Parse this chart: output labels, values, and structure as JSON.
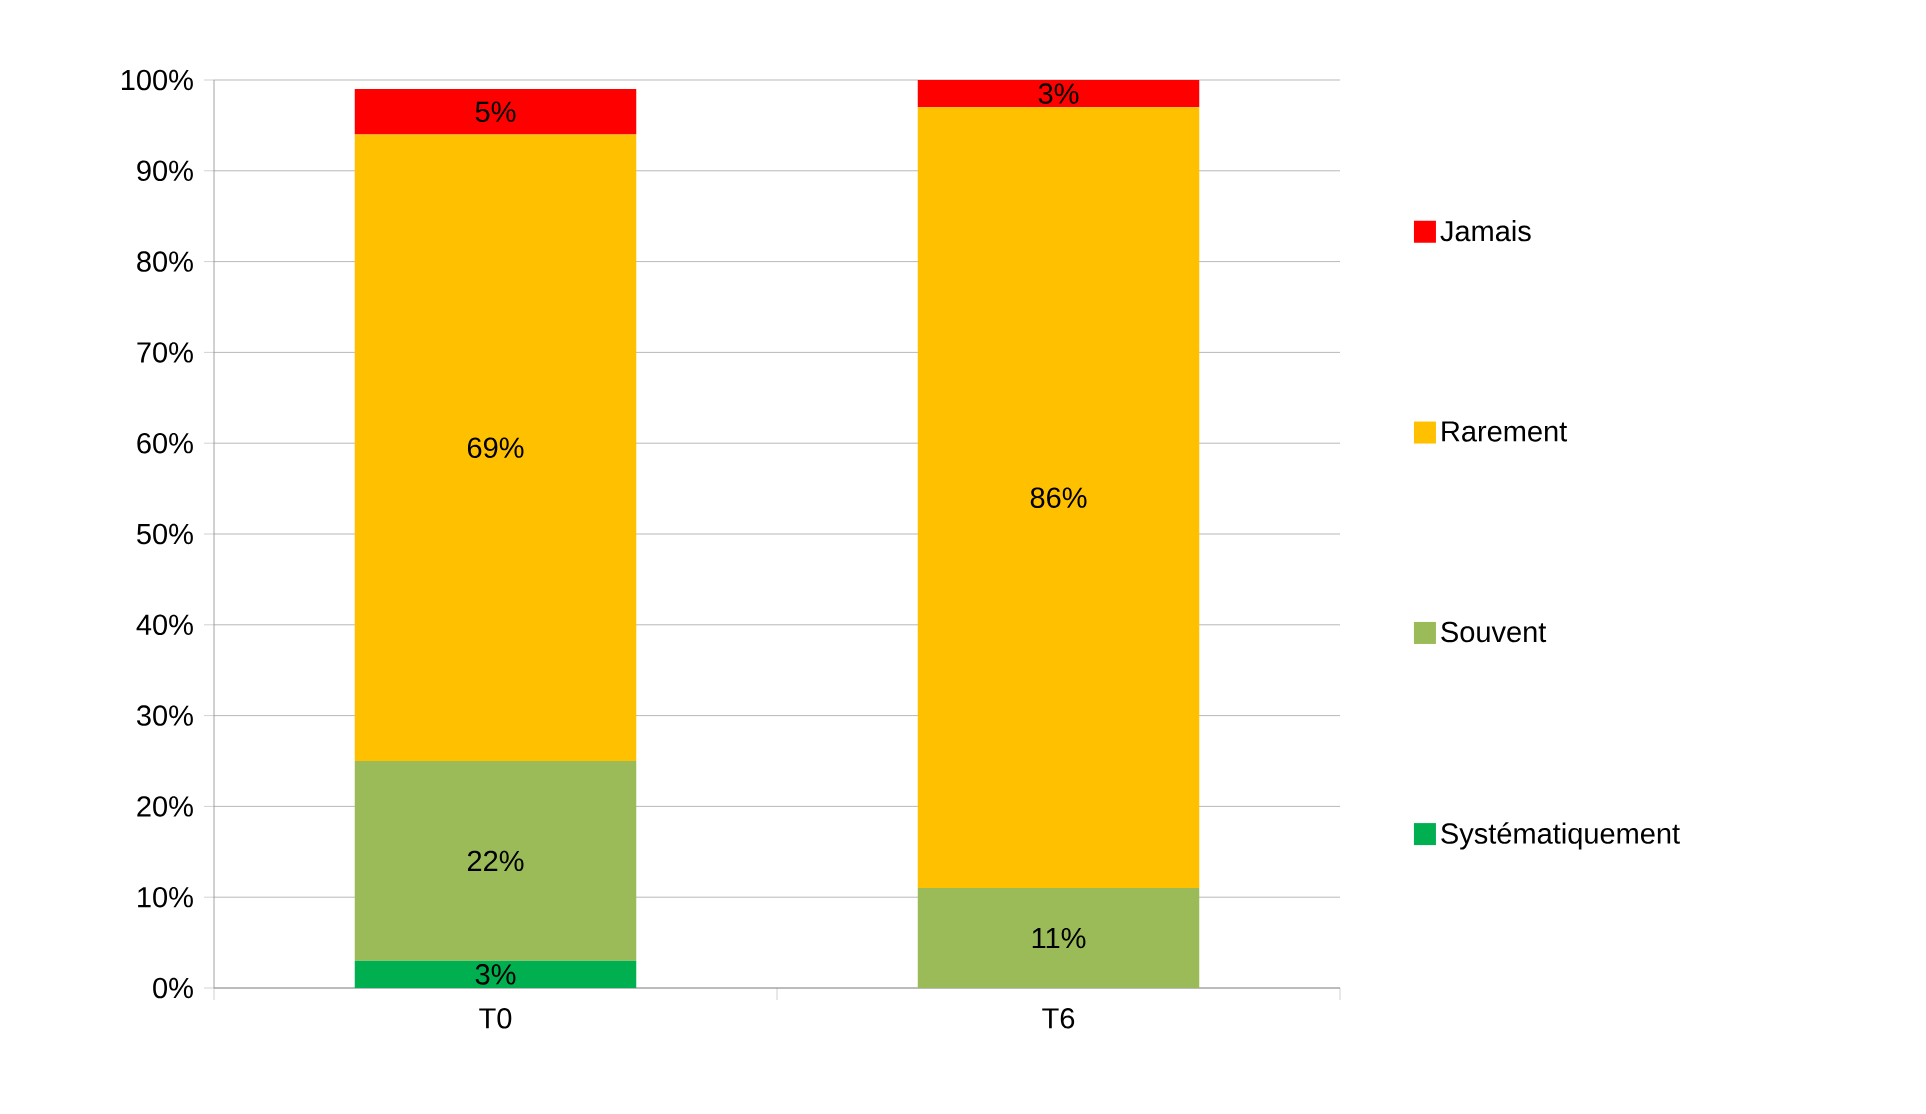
{
  "chart_data": {
    "type": "bar",
    "stacked": true,
    "categories": [
      "T0",
      "T6"
    ],
    "series": [
      {
        "name": "Systématiquement",
        "color": "#00b050",
        "values": [
          3,
          0
        ],
        "value_labels": [
          "3%",
          null
        ]
      },
      {
        "name": "Souvent",
        "color": "#9bbb59",
        "values": [
          22,
          11
        ],
        "value_labels": [
          "22%",
          "11%"
        ]
      },
      {
        "name": "Rarement",
        "color": "#ffc000",
        "values": [
          69,
          86
        ],
        "value_labels": [
          "69%",
          "86%"
        ]
      },
      {
        "name": "Jamais",
        "color": "#ff0000",
        "values": [
          5,
          3
        ],
        "value_labels": [
          "5%",
          "3%"
        ]
      }
    ],
    "ylim": [
      0,
      100
    ],
    "yticks": [
      {
        "value": 0,
        "label": "0%"
      },
      {
        "value": 10,
        "label": "10%"
      },
      {
        "value": 20,
        "label": "20%"
      },
      {
        "value": 30,
        "label": "30%"
      },
      {
        "value": 40,
        "label": "40%"
      },
      {
        "value": 50,
        "label": "50%"
      },
      {
        "value": 60,
        "label": "60%"
      },
      {
        "value": 70,
        "label": "70%"
      },
      {
        "value": 80,
        "label": "80%"
      },
      {
        "value": 90,
        "label": "90%"
      },
      {
        "value": 100,
        "label": "100%"
      }
    ],
    "grid": "y",
    "legend": "right"
  }
}
